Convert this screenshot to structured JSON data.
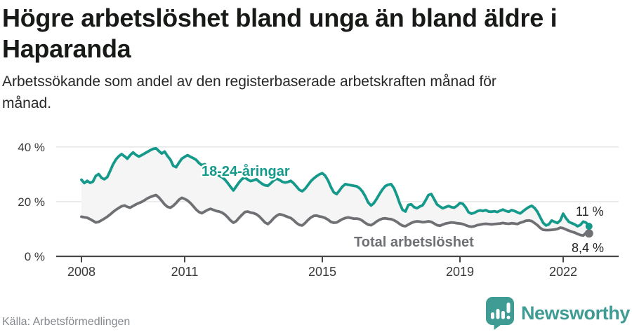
{
  "header": {
    "title_lines": [
      "Högre arbetslöshet bland unga än bland äldre i",
      "Haparanda"
    ],
    "subtitle_lines": [
      "Arbetssökande som andel av den registerbaserade arbetskraften månad för",
      "månad."
    ]
  },
  "footer": {
    "source": "Källa: Arbetsförmedlingen",
    "brand": "Newsworthy"
  },
  "colors": {
    "youth_line": "#14998b",
    "total_line": "#6e7074",
    "band_fill": "#f5f5f5",
    "brand_teal": "#3f9c95"
  },
  "chart_data": {
    "type": "line",
    "title": "Högre arbetslöshet bland unga än bland äldre i Haparanda",
    "subtitle": "Arbetssökande som andel av den registerbaserade arbetskraften månad för månad.",
    "x_unit": "month",
    "x_start": "2008-01",
    "x_end": "2022-10",
    "ylim": [
      0,
      45
    ],
    "grid": "horizontal",
    "y_tick_labels": [
      "0 %",
      "20 %",
      "40 %"
    ],
    "x_tick_labels": [
      "2008",
      "2011",
      "2015",
      "2019",
      "2022"
    ],
    "x_tick_years": [
      2008,
      2011,
      2015,
      2019,
      2022
    ],
    "series": [
      {
        "name": "18-24-åringar",
        "end_label": "11 %",
        "end_value": 11,
        "values": [
          28.0,
          26.8,
          27.6,
          26.9,
          27.3,
          29.4,
          30.1,
          28.7,
          28.2,
          29.0,
          31.2,
          33.6,
          35.4,
          36.6,
          37.4,
          36.6,
          35.7,
          37.0,
          38.0,
          37.1,
          36.5,
          37.0,
          37.6,
          38.2,
          38.8,
          39.3,
          39.5,
          38.5,
          37.6,
          38.3,
          36.7,
          35.4,
          33.1,
          32.6,
          34.2,
          35.7,
          36.4,
          37.0,
          36.4,
          35.9,
          35.3,
          34.1,
          33.3,
          33.7,
          32.3,
          31.3,
          30.7,
          30.1,
          29.5,
          28.9,
          28.1,
          26.8,
          25.4,
          24.1,
          25.6,
          27.1,
          28.3,
          28.8,
          28.1,
          27.5,
          27.8,
          28.2,
          27.3,
          26.5,
          26.0,
          25.8,
          26.7,
          27.7,
          28.4,
          28.0,
          27.3,
          27.0,
          27.2,
          27.6,
          26.7,
          25.5,
          24.3,
          23.8,
          24.7,
          26.1,
          27.5,
          28.5,
          29.3,
          30.0,
          30.4,
          29.5,
          27.7,
          25.3,
          23.4,
          22.8,
          24.1,
          25.5,
          26.4,
          26.2,
          26.0,
          25.8,
          25.6,
          24.9,
          23.7,
          21.9,
          19.7,
          18.6,
          19.5,
          21.1,
          22.9,
          24.5,
          25.7,
          26.2,
          26.4,
          24.9,
          22.3,
          19.3,
          17.0,
          16.4,
          18.8,
          19.0,
          18.0,
          17.6,
          18.2,
          18.7,
          20.4,
          22.4,
          22.8,
          20.9,
          19.0,
          18.2,
          17.6,
          18.0,
          18.4,
          18.0,
          17.8,
          18.5,
          19.5,
          19.2,
          17.9,
          16.1,
          15.6,
          15.9,
          16.5,
          16.8,
          16.6,
          16.9,
          16.4,
          16.3,
          16.5,
          16.2,
          16.7,
          17.1,
          16.6,
          16.3,
          16.9,
          16.6,
          16.1,
          15.7,
          16.5,
          17.3,
          18.0,
          18.5,
          17.7,
          16.3,
          14.3,
          12.3,
          11.3,
          11.7,
          13.1,
          12.6,
          12.2,
          13.1,
          15.6,
          13.9,
          12.6,
          12.1,
          11.7,
          11.0,
          11.5,
          12.7,
          12.3,
          11.0
        ]
      },
      {
        "name": "Total arbetslöshet",
        "end_label": "8,4 %",
        "end_value": 8.4,
        "values": [
          14.5,
          14.3,
          14.1,
          13.6,
          13.0,
          12.4,
          12.6,
          13.2,
          13.8,
          14.5,
          15.3,
          16.2,
          17.0,
          17.7,
          18.3,
          18.6,
          18.1,
          17.8,
          18.4,
          19.0,
          19.5,
          19.9,
          20.5,
          21.2,
          21.7,
          22.1,
          22.4,
          21.5,
          20.3,
          19.0,
          18.1,
          17.8,
          18.5,
          19.5,
          20.7,
          21.4,
          21.0,
          20.4,
          19.5,
          18.3,
          17.1,
          16.2,
          15.8,
          16.4,
          17.0,
          17.4,
          17.0,
          16.6,
          16.4,
          16.0,
          15.3,
          14.3,
          13.1,
          12.3,
          12.9,
          14.1,
          15.2,
          16.2,
          16.4,
          16.0,
          15.8,
          15.4,
          14.6,
          13.5,
          12.4,
          11.8,
          12.7,
          13.9,
          14.8,
          15.4,
          15.2,
          14.8,
          14.4,
          14.0,
          13.2,
          12.2,
          11.5,
          11.3,
          12.2,
          13.3,
          14.2,
          14.8,
          14.9,
          14.6,
          14.4,
          14.0,
          13.4,
          12.6,
          12.3,
          12.4,
          13.0,
          13.6,
          14.0,
          14.2,
          14.0,
          13.8,
          13.8,
          13.6,
          13.0,
          12.2,
          11.6,
          11.4,
          12.0,
          12.8,
          13.4,
          13.8,
          13.9,
          13.7,
          13.6,
          13.2,
          12.6,
          11.8,
          11.2,
          11.0,
          11.6,
          12.2,
          12.6,
          12.8,
          12.7,
          12.5,
          12.6,
          12.8,
          12.6,
          12.0,
          11.4,
          11.2,
          11.6,
          12.0,
          12.2,
          12.4,
          12.3,
          12.1,
          12.0,
          11.8,
          11.4,
          11.0,
          10.8,
          11.0,
          11.4,
          11.6,
          11.8,
          11.9,
          11.8,
          11.7,
          11.8,
          11.9,
          12.0,
          12.2,
          12.0,
          11.9,
          12.1,
          12.0,
          11.8,
          12.3,
          12.6,
          13.0,
          13.1,
          12.9,
          12.2,
          11.4,
          10.4,
          9.7,
          9.6,
          9.6,
          9.7,
          9.8,
          10.0,
          10.5,
          10.3,
          9.8,
          9.4,
          9.0,
          8.7,
          8.2,
          7.8,
          7.6,
          8.7,
          8.4
        ]
      }
    ]
  }
}
